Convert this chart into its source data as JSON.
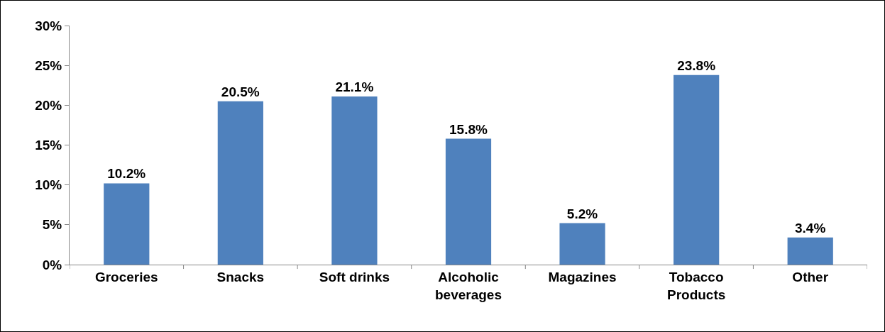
{
  "chart_data": {
    "type": "bar",
    "categories": [
      "Groceries",
      "Snacks",
      "Soft drinks",
      "Alcoholic\nbeverages",
      "Magazines",
      "Tobacco\nProducts",
      "Other"
    ],
    "values": [
      10.2,
      20.5,
      21.1,
      15.8,
      5.2,
      23.8,
      3.4
    ],
    "value_labels": [
      "10.2%",
      "20.5%",
      "21.1%",
      "15.8%",
      "5.2%",
      "23.8%",
      "3.4%"
    ],
    "color": "#4f81bd",
    "ylim": [
      0,
      30
    ],
    "yticks": [
      {
        "value": 0,
        "label": "0%"
      },
      {
        "value": 5,
        "label": "5%"
      },
      {
        "value": 10,
        "label": "10%"
      },
      {
        "value": 15,
        "label": "15%"
      },
      {
        "value": 20,
        "label": "20%"
      },
      {
        "value": 25,
        "label": "25%"
      },
      {
        "value": 30,
        "label": "30%"
      }
    ],
    "grid": false,
    "legend": false
  }
}
